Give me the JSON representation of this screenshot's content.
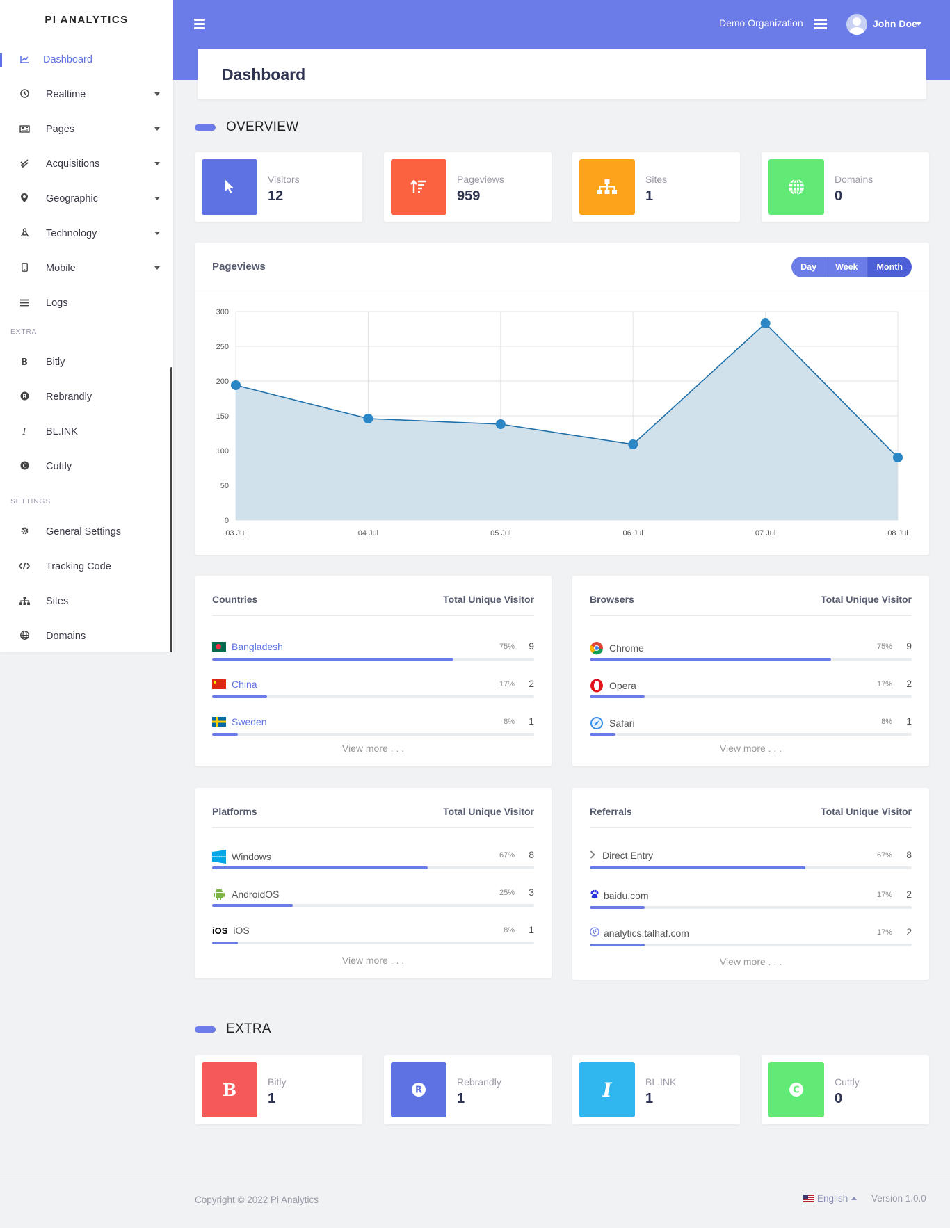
{
  "brand": "PI ANALYTICS",
  "sidebar": {
    "items": [
      {
        "label": "Dashboard",
        "icon": "chart-line-icon"
      },
      {
        "label": "Realtime",
        "icon": "clock-icon"
      },
      {
        "label": "Pages",
        "icon": "newspaper-icon"
      },
      {
        "label": "Acquisitions",
        "icon": "double-check-icon"
      },
      {
        "label": "Geographic",
        "icon": "map-pin-icon"
      },
      {
        "label": "Technology",
        "icon": "drafting-compass-icon"
      },
      {
        "label": "Mobile",
        "icon": "mobile-icon"
      },
      {
        "label": "Logs",
        "icon": "list-icon"
      }
    ],
    "extra_heading": "EXTRA",
    "extra_items": [
      {
        "label": "Bitly",
        "icon": "bold-b-icon"
      },
      {
        "label": "Rebrandly",
        "icon": "registered-icon"
      },
      {
        "label": "BL.INK",
        "icon": "italic-i-icon"
      },
      {
        "label": "Cuttly",
        "icon": "copyright-icon"
      }
    ],
    "settings_heading": "SETTINGS",
    "settings_items": [
      {
        "label": "General Settings",
        "icon": "gear-icon"
      },
      {
        "label": "Tracking Code",
        "icon": "code-icon"
      },
      {
        "label": "Sites",
        "icon": "sitemap-icon"
      },
      {
        "label": "Domains",
        "icon": "globe-icon"
      }
    ]
  },
  "topbar": {
    "organization": "Demo Organization",
    "user": "John Doe"
  },
  "page_title": "Dashboard",
  "overview": {
    "heading": "OVERVIEW",
    "stats": [
      {
        "label": "Visitors",
        "value": "12",
        "color": "#5e72e4",
        "icon": "pointer-icon"
      },
      {
        "label": "Pageviews",
        "value": "959",
        "color": "#fb6340",
        "icon": "sort-amount-icon"
      },
      {
        "label": "Sites",
        "value": "1",
        "color": "#fda21b",
        "icon": "sitemap-icon"
      },
      {
        "label": "Domains",
        "value": "0",
        "color": "#61ea75",
        "icon": "globe-icon"
      }
    ]
  },
  "pageviews": {
    "title": "Pageviews",
    "buttons": [
      "Day",
      "Week",
      "Month"
    ],
    "active": "Month"
  },
  "chart_data": {
    "type": "area",
    "x": [
      "03 Jul",
      "04 Jul",
      "05 Jul",
      "06 Jul",
      "07 Jul",
      "08 Jul"
    ],
    "values": [
      194,
      146,
      138,
      109,
      283,
      90
    ],
    "ylim": [
      0,
      300
    ],
    "yticks": [
      "0",
      "50",
      "100",
      "150",
      "200",
      "250",
      "300"
    ],
    "grid": true,
    "line_color": "#1f6fa8",
    "fill_color": "#cfdfeb",
    "point_color": "#2b86c5"
  },
  "countries": {
    "title": "Countries",
    "col": "Total Unique Visitor",
    "rows": [
      {
        "name": "Bangladesh",
        "pct": "75%",
        "count": "9",
        "fill": 0.75
      },
      {
        "name": "China",
        "pct": "17%",
        "count": "2",
        "fill": 0.17
      },
      {
        "name": "Sweden",
        "pct": "8%",
        "count": "1",
        "fill": 0.08
      }
    ],
    "more": "View more . . ."
  },
  "browsers": {
    "title": "Browsers",
    "col": "Total Unique Visitor",
    "rows": [
      {
        "name": "Chrome",
        "pct": "75%",
        "count": "9",
        "fill": 0.75
      },
      {
        "name": "Opera",
        "pct": "17%",
        "count": "2",
        "fill": 0.17
      },
      {
        "name": "Safari",
        "pct": "8%",
        "count": "1",
        "fill": 0.08
      }
    ],
    "more": "View more . . ."
  },
  "platforms": {
    "title": "Platforms",
    "col": "Total Unique Visitor",
    "rows": [
      {
        "name": "Windows",
        "pct": "67%",
        "count": "8",
        "fill": 0.67
      },
      {
        "name": "AndroidOS",
        "pct": "25%",
        "count": "3",
        "fill": 0.25
      },
      {
        "name": "iOS",
        "pct": "8%",
        "count": "1",
        "fill": 0.08
      }
    ],
    "ios_logo": "iOS",
    "more": "View more . . ."
  },
  "referrals": {
    "title": "Referrals",
    "col": "Total Unique Visitor",
    "rows": [
      {
        "name": "Direct Entry",
        "pct": "67%",
        "count": "8",
        "fill": 0.67
      },
      {
        "name": "baidu.com",
        "pct": "17%",
        "count": "2",
        "fill": 0.17
      },
      {
        "name": "analytics.talhaf.com",
        "pct": "17%",
        "count": "2",
        "fill": 0.17
      }
    ],
    "more": "View more . . ."
  },
  "extra": {
    "heading": "EXTRA",
    "stats": [
      {
        "label": "Bitly",
        "value": "1",
        "color": "#f5595a",
        "glyph": "B"
      },
      {
        "label": "Rebrandly",
        "value": "1",
        "color": "#5e72e4",
        "glyph": "R"
      },
      {
        "label": "BL.INK",
        "value": "1",
        "color": "#30b7ef",
        "glyph": "I"
      },
      {
        "label": "Cuttly",
        "value": "0",
        "color": "#61ea75",
        "glyph": "C"
      }
    ]
  },
  "footer": {
    "copyright": "Copyright © 2022 Pi Analytics",
    "language": "English",
    "version": "Version 1.0.0"
  }
}
